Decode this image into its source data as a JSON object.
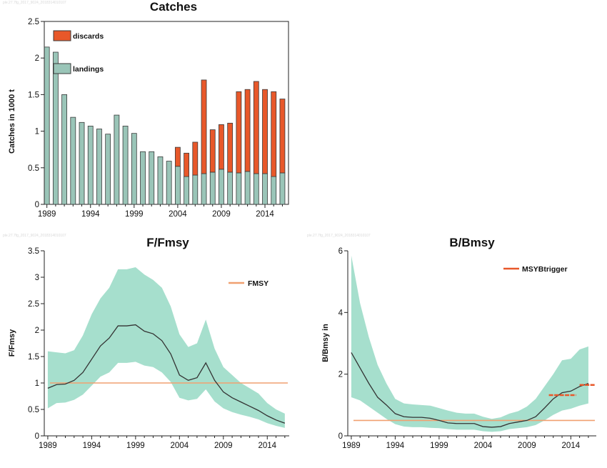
{
  "colors": {
    "landings": "#9ac5b8",
    "discards": "#e8582a",
    "band": "#a6dfcd",
    "ref_line": "#f0a070",
    "line": "#333333",
    "bar_stroke": "#3a3a3a"
  },
  "chart_data": [
    {
      "type": "bar",
      "title": "Catches",
      "watermark": "ple.27.7fg_2017_9024_2018314010107",
      "ylabel": "Catches in 1000 t",
      "xlabel": "",
      "ylim": [
        0,
        2.5
      ],
      "yticks": [
        0,
        0.5,
        1,
        1.5,
        2,
        2.5
      ],
      "ytick_labels": [
        "0",
        "0.5",
        "1",
        "1.5",
        "2",
        "2.5"
      ],
      "xtick_labels": [
        "1989",
        "1994",
        "1999",
        "2004",
        "2009",
        "2014"
      ],
      "categories": [
        1989,
        1990,
        1991,
        1992,
        1993,
        1994,
        1995,
        1996,
        1997,
        1998,
        1999,
        2000,
        2001,
        2002,
        2003,
        2004,
        2005,
        2006,
        2007,
        2008,
        2009,
        2010,
        2011,
        2012,
        2013,
        2014,
        2015,
        2016
      ],
      "series": [
        {
          "name": "landings",
          "values": [
            2.15,
            2.08,
            1.5,
            1.19,
            1.12,
            1.07,
            1.03,
            0.96,
            1.22,
            1.07,
            0.97,
            0.72,
            0.72,
            0.65,
            0.59,
            0.52,
            0.38,
            0.4,
            0.42,
            0.44,
            0.48,
            0.44,
            0.43,
            0.45,
            0.42,
            0.42,
            0.38,
            0.43
          ]
        },
        {
          "name": "discards",
          "values": [
            0,
            0,
            0,
            0,
            0,
            0,
            0,
            0,
            0,
            0,
            0,
            0,
            0,
            0,
            0,
            0.26,
            0.32,
            0.45,
            1.28,
            0.58,
            0.61,
            0.67,
            1.11,
            1.12,
            1.26,
            1.15,
            1.16,
            1.01
          ]
        }
      ],
      "legend": "top-left",
      "grid": false
    },
    {
      "type": "line",
      "title": "F/Fmsy",
      "watermark": "ple.27.7fg_2017_9024_2018314010107",
      "ylabel": "F/Fmsy",
      "xlabel": "",
      "ylim": [
        0,
        3.5
      ],
      "yticks": [
        0,
        0.5,
        1,
        1.5,
        2,
        2.5,
        3,
        3.5
      ],
      "ytick_labels": [
        "0",
        "0.5",
        "1",
        "1.5",
        "2",
        "2.5",
        "3",
        "3.5"
      ],
      "xtick_labels": [
        "1989",
        "1994",
        "1999",
        "2004",
        "2009",
        "2014"
      ],
      "x": [
        1989,
        1990,
        1991,
        1992,
        1993,
        1994,
        1995,
        1996,
        1997,
        1998,
        1999,
        2000,
        2001,
        2002,
        2003,
        2004,
        2005,
        2006,
        2007,
        2008,
        2009,
        2010,
        2011,
        2012,
        2013,
        2014,
        2015,
        2016
      ],
      "series": [
        {
          "name": "",
          "values": [
            0.9,
            0.97,
            0.98,
            1.05,
            1.2,
            1.45,
            1.7,
            1.85,
            2.08,
            2.08,
            2.1,
            1.98,
            1.93,
            1.8,
            1.55,
            1.15,
            1.05,
            1.1,
            1.38,
            1.05,
            0.83,
            0.72,
            0.64,
            0.56,
            0.48,
            0.38,
            0.3,
            0.24
          ]
        }
      ],
      "band": {
        "upper": [
          1.6,
          1.58,
          1.56,
          1.62,
          1.9,
          2.3,
          2.6,
          2.8,
          3.15,
          3.15,
          3.19,
          3.05,
          2.95,
          2.8,
          2.45,
          1.92,
          1.68,
          1.75,
          2.2,
          1.65,
          1.3,
          1.15,
          1.0,
          0.9,
          0.8,
          0.62,
          0.5,
          0.42
        ],
        "lower": [
          0.52,
          0.62,
          0.63,
          0.68,
          0.78,
          0.95,
          1.12,
          1.2,
          1.38,
          1.38,
          1.4,
          1.33,
          1.3,
          1.2,
          1.02,
          0.72,
          0.67,
          0.7,
          0.88,
          0.65,
          0.52,
          0.45,
          0.4,
          0.36,
          0.31,
          0.24,
          0.19,
          0.15
        ]
      },
      "reference": {
        "name": "FMSY",
        "value": 1.0
      },
      "legend": "top-right",
      "grid": false
    },
    {
      "type": "line",
      "title": "B/Bmsy",
      "watermark": "ple.27.7fg_2017_9024_2018314010107",
      "ylabel": "B/Bmsy in",
      "xlabel": "",
      "ylim": [
        0,
        6
      ],
      "yticks": [
        0,
        2,
        4,
        6
      ],
      "ytick_labels": [
        "0",
        "2",
        "4",
        "6"
      ],
      "xtick_labels": [
        "1989",
        "1994",
        "1999",
        "2004",
        "2009",
        "2014"
      ],
      "x": [
        1989,
        1990,
        1991,
        1992,
        1993,
        1994,
        1995,
        1996,
        1997,
        1998,
        1999,
        2000,
        2001,
        2002,
        2003,
        2004,
        2005,
        2006,
        2007,
        2008,
        2009,
        2010,
        2011,
        2012,
        2013,
        2014,
        2015,
        2016
      ],
      "series": [
        {
          "name": "",
          "values": [
            2.7,
            2.2,
            1.7,
            1.25,
            1.0,
            0.72,
            0.62,
            0.6,
            0.6,
            0.57,
            0.5,
            0.42,
            0.4,
            0.4,
            0.4,
            0.3,
            0.28,
            0.3,
            0.4,
            0.45,
            0.5,
            0.62,
            0.9,
            1.2,
            1.4,
            1.45,
            1.6,
            1.7
          ]
        }
      ],
      "band": {
        "upper": [
          5.85,
          4.3,
          3.2,
          2.3,
          1.7,
          1.2,
          1.05,
          1.02,
          1.0,
          0.98,
          0.9,
          0.82,
          0.75,
          0.72,
          0.72,
          0.62,
          0.55,
          0.6,
          0.72,
          0.8,
          0.95,
          1.2,
          1.6,
          2.0,
          2.45,
          2.5,
          2.8,
          2.9
        ],
        "lower": [
          1.25,
          1.15,
          0.95,
          0.75,
          0.55,
          0.38,
          0.3,
          0.28,
          0.28,
          0.26,
          0.25,
          0.22,
          0.2,
          0.2,
          0.2,
          0.15,
          0.13,
          0.15,
          0.22,
          0.25,
          0.28,
          0.35,
          0.5,
          0.68,
          0.82,
          0.88,
          0.98,
          1.05
        ]
      },
      "reference": {
        "name": "",
        "value": 0.5
      },
      "msybtrigger": {
        "name": "MSYBtrigger",
        "segments": [
          {
            "x0": 2011.5,
            "x1": 2014.6,
            "y": 1.32
          },
          {
            "x0": 2015,
            "x1": 2016.8,
            "y": 1.65
          }
        ]
      },
      "legend": "top-right",
      "grid": false
    }
  ]
}
